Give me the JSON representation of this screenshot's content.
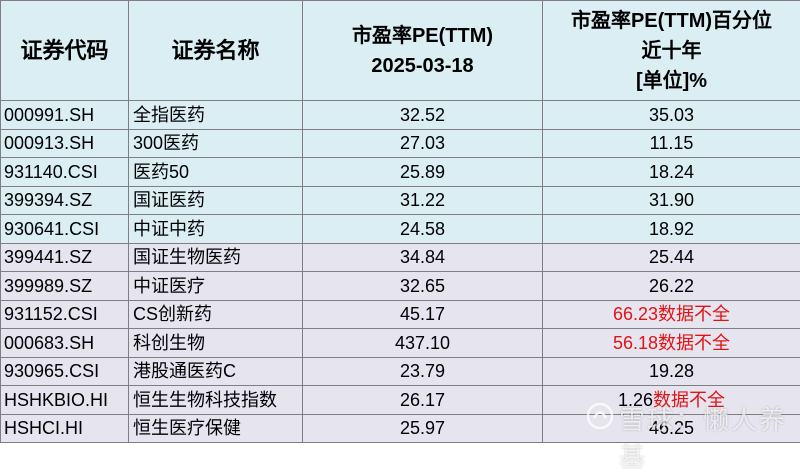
{
  "header": {
    "col_code": "证券代码",
    "col_name": "证券名称",
    "col_pe_line1": "市盈率PE(TTM)",
    "col_pe_line2": "2025-03-18",
    "col_pct_line1": "市盈率PE(TTM)百分位",
    "col_pct_line2": "近十年",
    "col_pct_line3": "[单位]%"
  },
  "rows": [
    {
      "code": "000991.SH",
      "name": "全指医药",
      "pe": "32.52",
      "pct": "35.03",
      "note": ""
    },
    {
      "code": "000913.SH",
      "name": "300医药",
      "pe": "27.03",
      "pct": "11.15",
      "note": ""
    },
    {
      "code": "931140.CSI",
      "name": "医药50",
      "pe": "25.89",
      "pct": "18.24",
      "note": ""
    },
    {
      "code": "399394.SZ",
      "name": "国证医药",
      "pe": "31.22",
      "pct": "31.90",
      "note": ""
    },
    {
      "code": "930641.CSI",
      "name": "中证中药",
      "pe": "24.58",
      "pct": "18.92",
      "note": ""
    },
    {
      "code": "399441.SZ",
      "name": "国证生物医药",
      "pe": "34.84",
      "pct": "25.44",
      "note": ""
    },
    {
      "code": "399989.SZ",
      "name": "中证医疗",
      "pe": "32.65",
      "pct": "26.22",
      "note": ""
    },
    {
      "code": "931152.CSI",
      "name": "CS创新药",
      "pe": "45.17",
      "pct": "66.23",
      "note": "数据不全"
    },
    {
      "code": "000683.SH",
      "name": "科创生物",
      "pe": "437.10",
      "pct": "56.18",
      "note": "数据不全"
    },
    {
      "code": "930965.CSI",
      "name": "港股通医药C",
      "pe": "23.79",
      "pct": "19.28",
      "note": ""
    },
    {
      "code": "HSHKBIO.HI",
      "name": "恒生生物科技指数",
      "pe": "26.17",
      "pct": "1.26",
      "note": "数据不全"
    },
    {
      "code": "HSHCI.HI",
      "name": "恒生医疗保健",
      "pe": "25.97",
      "pct": "46.25",
      "note": ""
    }
  ],
  "watermark": {
    "text": "雪球：懒人养基"
  },
  "colors": {
    "header_bg": "#dbeef3",
    "band_blue": "#dbeef3",
    "band_lavender": "#e6e4ef",
    "warn": "#e01414",
    "border": "#7f7f7f"
  }
}
